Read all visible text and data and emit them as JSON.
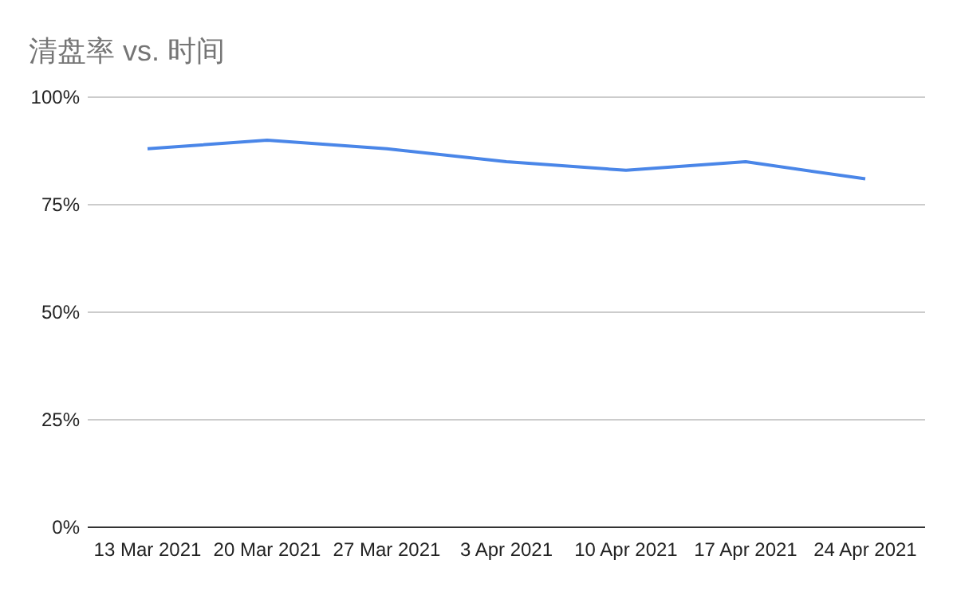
{
  "chart_data": {
    "type": "line",
    "title": "清盘率 vs. 时间",
    "categories": [
      "13 Mar 2021",
      "20 Mar 2021",
      "27 Mar 2021",
      "3 Apr 2021",
      "10 Apr 2021",
      "17 Apr 2021",
      "24 Apr 2021"
    ],
    "series": [
      {
        "color": "#4a86e8",
        "values": [
          88,
          90,
          88,
          85,
          83,
          85,
          81
        ]
      }
    ],
    "ylim": [
      0,
      100
    ],
    "yticks": [
      {
        "value": 0,
        "label": "0%"
      },
      {
        "value": 25,
        "label": "25%"
      },
      {
        "value": 50,
        "label": "50%"
      },
      {
        "value": 75,
        "label": "75%"
      },
      {
        "value": 100,
        "label": "100%"
      }
    ],
    "grid": true,
    "marker": "none",
    "line_style": "solid"
  }
}
